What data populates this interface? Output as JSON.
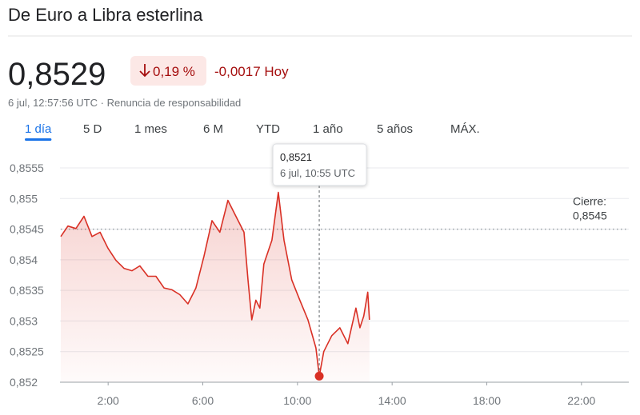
{
  "header": {
    "title": "De Euro a Libra esterlina",
    "price": "0,8529",
    "change_percent": "0,19 %",
    "change": "-0,0017",
    "period": "Hoy",
    "timestamp": "6 jul, 12:57:56 UTC",
    "separator": "·",
    "disclaimer": "Renuncia de responsabilidad"
  },
  "tabs": [
    "1 día",
    "5 D",
    "1 mes",
    "6 M",
    "YTD",
    "1 año",
    "5 años",
    "MÁX."
  ],
  "chart_data": {
    "type": "line",
    "color": "#d93025",
    "x": [
      0,
      0.3,
      0.64,
      0.98,
      1.32,
      1.66,
      1.99,
      2.33,
      2.67,
      3.01,
      3.34,
      3.68,
      4.02,
      4.36,
      4.7,
      5.03,
      5.37,
      5.71,
      6.05,
      6.39,
      6.72,
      7.06,
      7.4,
      7.74,
      7.91,
      8.07,
      8.24,
      8.41,
      8.58,
      8.92,
      9.19,
      9.43,
      9.76,
      10.1,
      10.44,
      10.78,
      10.92,
      11.11,
      11.45,
      11.79,
      12.13,
      12.47,
      12.64,
      12.8,
      12.97,
      13.04
    ],
    "values": [
      0.85438,
      0.85455,
      0.85451,
      0.85471,
      0.85438,
      0.85445,
      0.85419,
      0.85399,
      0.85386,
      0.85382,
      0.8539,
      0.85373,
      0.85373,
      0.85354,
      0.85351,
      0.85343,
      0.85328,
      0.85354,
      0.85406,
      0.85464,
      0.85445,
      0.85497,
      0.85471,
      0.85445,
      0.85367,
      0.85302,
      0.85334,
      0.85321,
      0.85393,
      0.85432,
      0.8551,
      0.85432,
      0.85367,
      0.85334,
      0.85302,
      0.85256,
      0.8521,
      0.8525,
      0.85276,
      0.85289,
      0.85263,
      0.85321,
      0.85289,
      0.85308,
      0.85347,
      0.85302
    ],
    "xlim": [
      0,
      24
    ],
    "xticks": [
      {
        "value": 2,
        "label": "2:00"
      },
      {
        "value": 6,
        "label": "6:00"
      },
      {
        "value": 10,
        "label": "10:00"
      },
      {
        "value": 14,
        "label": "14:00"
      },
      {
        "value": 18,
        "label": "18:00"
      },
      {
        "value": 22,
        "label": "22:00"
      }
    ],
    "ylim": [
      0.852,
      0.8555
    ],
    "yticks": [
      {
        "value": 0.852,
        "label": "0,852"
      },
      {
        "value": 0.8525,
        "label": "0,8525"
      },
      {
        "value": 0.853,
        "label": "0,853"
      },
      {
        "value": 0.8535,
        "label": "0,8535"
      },
      {
        "value": 0.854,
        "label": "0,854"
      },
      {
        "value": 0.8545,
        "label": "0,8545"
      },
      {
        "value": 0.855,
        "label": "0,855"
      },
      {
        "value": 0.8555,
        "label": "0,8555"
      }
    ],
    "grid": true,
    "previous_close": {
      "label": "Cierre:",
      "value": 0.8545,
      "value_label": "0,8545"
    },
    "highlight": {
      "x": 10.92,
      "value": 0.8521,
      "label": "0,8521",
      "time": "6 jul, 10:55 UTC"
    }
  }
}
